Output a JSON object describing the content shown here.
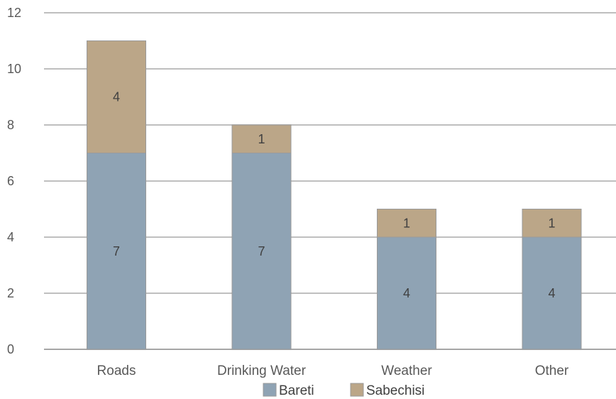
{
  "chart_data": {
    "type": "bar",
    "stacked": true,
    "categories": [
      "Roads",
      "Drinking Water",
      "Weather",
      "Other"
    ],
    "series": [
      {
        "name": "Bareti",
        "values": [
          7,
          7,
          4,
          4
        ],
        "color": "#8FA3B4"
      },
      {
        "name": "Sabechisi",
        "values": [
          4,
          1,
          1,
          1
        ],
        "color": "#BBA688"
      }
    ],
    "ylim": [
      0,
      12
    ],
    "yticks": [
      "0",
      "2",
      "4",
      "6",
      "8",
      "10",
      "12"
    ],
    "grid": true,
    "legend": "bottom",
    "data_labels": true,
    "xlabel": "",
    "ylabel": ""
  }
}
